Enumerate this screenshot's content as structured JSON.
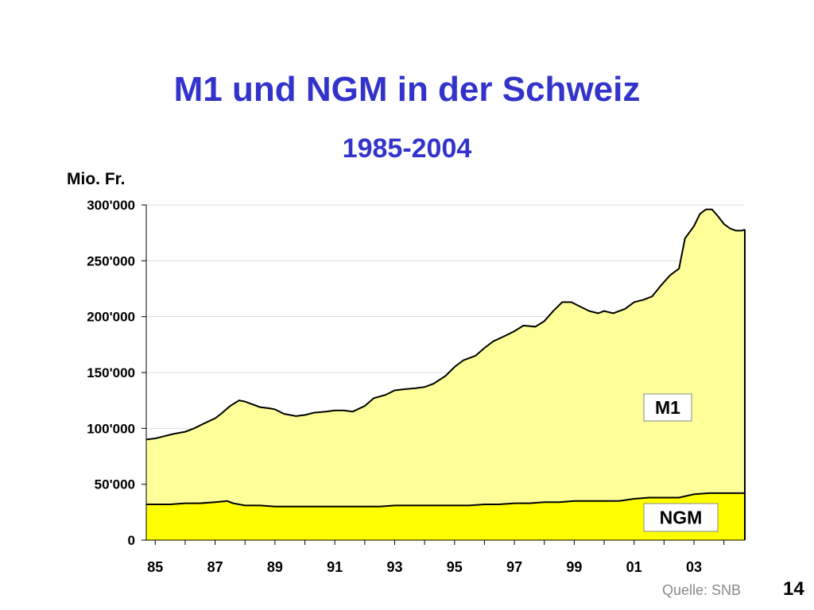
{
  "slide": {
    "source": "Quelle: SNB",
    "page_number": "14"
  },
  "chart_data": {
    "type": "area",
    "title": "M1 und NGM in der Schweiz",
    "subtitle": "1985-2004",
    "ylabel": "Mio. Fr.",
    "ylim": [
      0,
      300000
    ],
    "yticks": [
      0,
      50000,
      100000,
      150000,
      200000,
      250000,
      300000
    ],
    "ytick_labels": [
      "0",
      "50'000",
      "100'000",
      "150'000",
      "200'000",
      "250'000",
      "300'000"
    ],
    "xlim": [
      1984.7,
      2004.7
    ],
    "xticks": [
      1985,
      1987,
      1989,
      1991,
      1993,
      1995,
      1997,
      1999,
      2001,
      2003
    ],
    "xtick_labels": [
      "85",
      "87",
      "89",
      "91",
      "93",
      "95",
      "97",
      "99",
      "01",
      "03"
    ],
    "grid": "horizontal",
    "colors": {
      "M1": "#ffff99",
      "NGM": "#ffff00",
      "line": "#000000",
      "grid": "#dddddd"
    },
    "series": [
      {
        "name": "M1",
        "x": [
          1984.7,
          1985.0,
          1985.3,
          1985.6,
          1986.0,
          1986.3,
          1986.6,
          1987.0,
          1987.2,
          1987.5,
          1987.8,
          1988.0,
          1988.2,
          1988.5,
          1988.8,
          1989.0,
          1989.3,
          1989.7,
          1990.0,
          1990.3,
          1990.7,
          1991.0,
          1991.3,
          1991.6,
          1992.0,
          1992.3,
          1992.7,
          1993.0,
          1993.3,
          1993.7,
          1994.0,
          1994.3,
          1994.7,
          1995.0,
          1995.3,
          1995.7,
          1996.0,
          1996.3,
          1996.7,
          1997.0,
          1997.3,
          1997.7,
          1998.0,
          1998.3,
          1998.6,
          1998.9,
          1999.2,
          1999.5,
          1999.8,
          2000.0,
          2000.3,
          2000.7,
          2001.0,
          2001.3,
          2001.6,
          2001.9,
          2002.2,
          2002.5,
          2002.7,
          2003.0,
          2003.2,
          2003.4,
          2003.6,
          2003.8,
          2004.0,
          2004.2,
          2004.4,
          2004.6,
          2004.7
        ],
        "values": [
          90000,
          91000,
          93000,
          95000,
          97000,
          100000,
          104000,
          109000,
          113000,
          120000,
          125000,
          124000,
          122000,
          119000,
          118000,
          117000,
          113000,
          111000,
          112000,
          114000,
          115000,
          116000,
          116000,
          115000,
          120000,
          127000,
          130000,
          134000,
          135000,
          136000,
          137000,
          140000,
          147000,
          155000,
          161000,
          165000,
          172000,
          178000,
          183000,
          187000,
          192000,
          191000,
          196000,
          205000,
          213000,
          213000,
          209000,
          205000,
          203000,
          205000,
          203000,
          207000,
          213000,
          215000,
          218000,
          228000,
          237000,
          243000,
          270000,
          281000,
          292000,
          296000,
          296000,
          290000,
          283000,
          279000,
          277000,
          277000,
          278000
        ]
      },
      {
        "name": "NGM",
        "x": [
          1984.7,
          1985.0,
          1985.5,
          1986.0,
          1986.5,
          1987.0,
          1987.4,
          1987.6,
          1988.0,
          1988.5,
          1989.0,
          1989.5,
          1990.0,
          1990.5,
          1991.0,
          1991.5,
          1992.0,
          1992.5,
          1993.0,
          1993.5,
          1994.0,
          1994.5,
          1995.0,
          1995.5,
          1996.0,
          1996.5,
          1997.0,
          1997.5,
          1998.0,
          1998.5,
          1999.0,
          1999.5,
          2000.0,
          2000.5,
          2001.0,
          2001.5,
          2002.0,
          2002.5,
          2003.0,
          2003.5,
          2004.0,
          2004.5,
          2004.7
        ],
        "values": [
          32000,
          32000,
          32000,
          33000,
          33000,
          34000,
          35000,
          33000,
          31000,
          31000,
          30000,
          30000,
          30000,
          30000,
          30000,
          30000,
          30000,
          30000,
          31000,
          31000,
          31000,
          31000,
          31000,
          31000,
          32000,
          32000,
          33000,
          33000,
          34000,
          34000,
          35000,
          35000,
          35000,
          35000,
          37000,
          38000,
          38000,
          38000,
          41000,
          42000,
          42000,
          42000,
          42000
        ]
      }
    ],
    "labels": [
      {
        "text": "M1",
        "series": "M1"
      },
      {
        "text": "NGM",
        "series": "NGM"
      }
    ]
  }
}
